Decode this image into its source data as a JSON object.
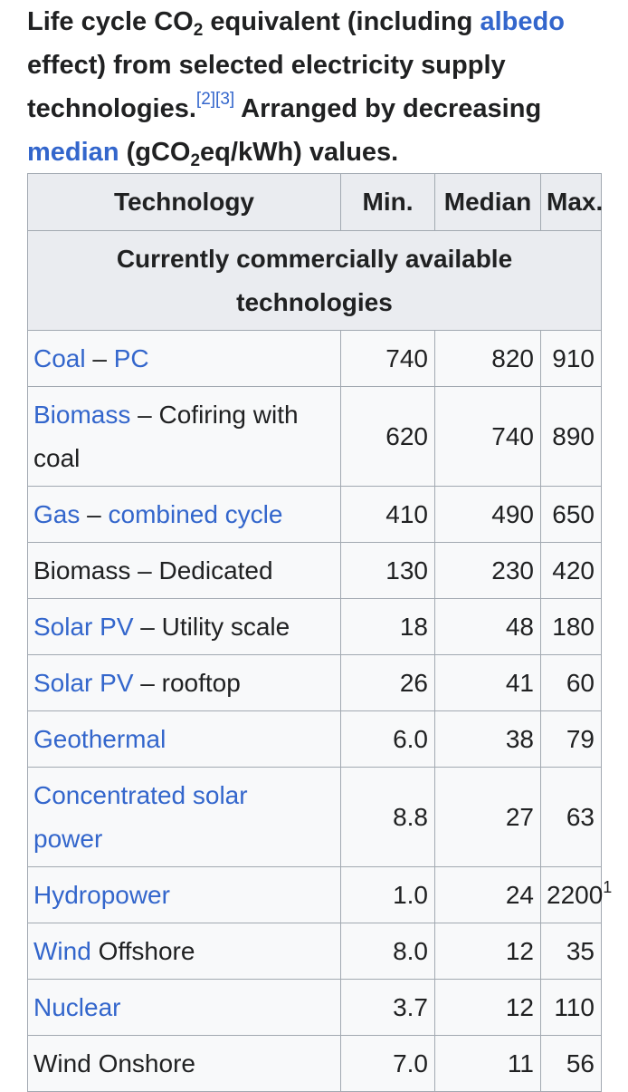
{
  "caption": {
    "part1": "Life cycle CO",
    "sub2": "2",
    "part2": " equivalent (including ",
    "albedo_link": "albedo",
    "part3": " effect) from selected electricity supply technologies.",
    "ref1": "[2]",
    "ref2": "[3]",
    "part4": " Arranged by decreasing ",
    "median_link": "median",
    "part5": " (gCO",
    "sub2b": "2",
    "part6": "eq/kWh) values."
  },
  "table": {
    "headers": {
      "technology": "Technology",
      "min": "Min.",
      "median": "Median",
      "max": "Max."
    },
    "section_title": "Currently commercially available technologies",
    "rows": [
      {
        "link": "Coal",
        "sep": " – ",
        "link2": "PC",
        "rest": "",
        "min": "740",
        "median": "820",
        "max": "910",
        "max_sup": ""
      },
      {
        "link": "Biomass",
        "sep": " – Cofiring with coal",
        "link2": "",
        "rest": "",
        "min": "620",
        "median": "740",
        "max": "890",
        "max_sup": ""
      },
      {
        "link": "Gas",
        "sep": " – ",
        "link2": "combined cycle",
        "rest": "",
        "min": "410",
        "median": "490",
        "max": "650",
        "max_sup": ""
      },
      {
        "link": "",
        "sep": "Biomass – Dedicated",
        "link2": "",
        "rest": "",
        "min": "130",
        "median": "230",
        "max": "420",
        "max_sup": ""
      },
      {
        "link": "Solar PV",
        "sep": " – Utility scale",
        "link2": "",
        "rest": "",
        "min": "18",
        "median": "48",
        "max": "180",
        "max_sup": ""
      },
      {
        "link": "Solar PV",
        "sep": " – rooftop",
        "link2": "",
        "rest": "",
        "min": "26",
        "median": "41",
        "max": "60",
        "max_sup": ""
      },
      {
        "link": "Geothermal",
        "sep": "",
        "link2": "",
        "rest": "",
        "min": "6.0",
        "median": "38",
        "max": "79",
        "max_sup": ""
      },
      {
        "link": "Concentrated solar power",
        "sep": "",
        "link2": "",
        "rest": "",
        "min": "8.8",
        "median": "27",
        "max": "63",
        "max_sup": ""
      },
      {
        "link": "Hydropower",
        "sep": "",
        "link2": "",
        "rest": "",
        "min": "1.0",
        "median": "24",
        "max": "2200",
        "max_sup": "1"
      },
      {
        "link": "Wind",
        "sep": " Offshore",
        "link2": "",
        "rest": "",
        "min": "8.0",
        "median": "12",
        "max": "35",
        "max_sup": ""
      },
      {
        "link": "Nuclear",
        "sep": "",
        "link2": "",
        "rest": "",
        "min": "3.7",
        "median": "12",
        "max": "110",
        "max_sup": ""
      },
      {
        "link": "",
        "sep": "Wind Onshore",
        "link2": "",
        "rest": "",
        "min": "7.0",
        "median": "11",
        "max": "56",
        "max_sup": ""
      }
    ]
  }
}
